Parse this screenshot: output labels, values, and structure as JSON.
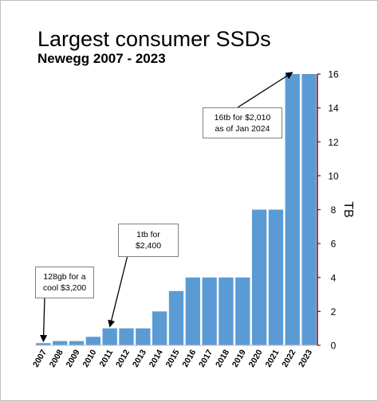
{
  "chart_data": {
    "type": "bar",
    "title": "Largest consumer SSDs",
    "subtitle": "Newegg 2007 - 2023",
    "xlabel": "",
    "ylabel": "TB",
    "y_axis_position": "right",
    "ylim": [
      0,
      16
    ],
    "yticks": [
      "0",
      "2",
      "4",
      "6",
      "8",
      "10",
      "12",
      "14",
      "16"
    ],
    "categories": [
      "2007",
      "2008",
      "2009",
      "2010",
      "2011",
      "2012",
      "2013",
      "2014",
      "2015",
      "2016",
      "2017",
      "2018",
      "2019",
      "2020",
      "2021",
      "2022",
      "2023"
    ],
    "values": [
      0.128,
      0.25,
      0.25,
      0.5,
      1,
      1,
      1,
      2,
      3.2,
      4,
      4,
      4,
      4,
      8,
      8,
      16,
      16
    ],
    "bar_color": "#5b9bd5",
    "annotations": [
      {
        "year": "2007",
        "line1": "128gb for a",
        "line2": "cool $3,200"
      },
      {
        "year": "2011",
        "line1": "1tb for",
        "line2": "$2,400"
      },
      {
        "year": "2022",
        "line1": "16tb for $2,010",
        "line2": "as of Jan 2024"
      }
    ]
  }
}
